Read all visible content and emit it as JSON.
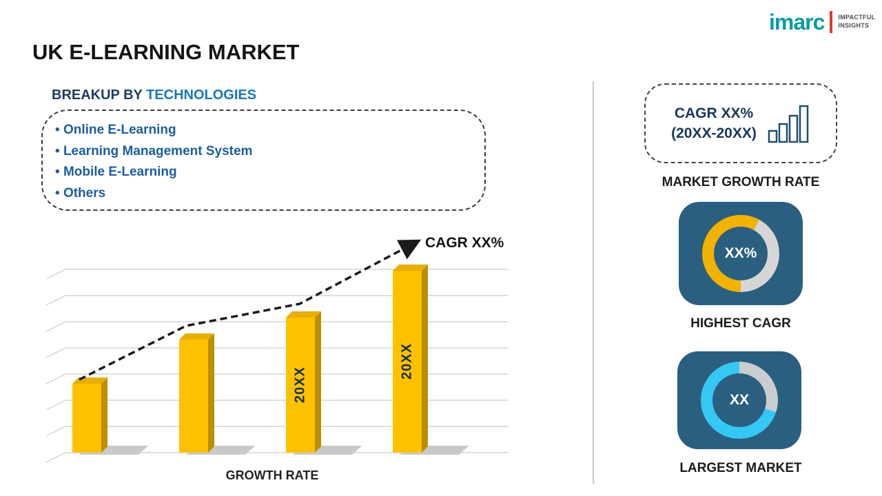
{
  "logo": {
    "name": "imarc",
    "tagline_line1": "IMPACTFUL",
    "tagline_line2": "INSIGHTS"
  },
  "title": "UK E-LEARNING MARKET",
  "breakup": {
    "heading_prefix": "BREAKUP BY ",
    "heading_highlight": "TECHNOLOGIES",
    "items": [
      "Online E-Learning",
      "Learning Management System",
      "Mobile E-Learning",
      "Others"
    ]
  },
  "chart_data": {
    "type": "bar",
    "title": "",
    "xlabel": "GROWTH RATE",
    "ylabel": "",
    "categories": [
      "",
      "",
      "20XX",
      "20XX"
    ],
    "bar_labels": [
      "",
      "",
      "20XX",
      "20XX"
    ],
    "values": [
      25,
      41,
      49,
      66
    ],
    "ylim": [
      0,
      70
    ],
    "grid": true,
    "bar_color": "#FFC000",
    "trend_label": "CAGR XX%",
    "trend_style": "dashed-arrow"
  },
  "right_panel": {
    "cagr_line1": "CAGR XX%",
    "cagr_line2": "(20XX-20XX)",
    "market_growth_label": "MARKET GROWTH RATE",
    "highest_cagr": {
      "value": "XX%",
      "label": "HIGHEST CAGR",
      "donut": {
        "start_deg": 180,
        "arc_percent": 58,
        "arc_color": "#f2b200",
        "track_color": "#d6d6d6"
      }
    },
    "largest_market": {
      "value": "XX",
      "label": "LARGEST MARKET",
      "donut": {
        "start_deg": 0,
        "arc_percent": 30,
        "arc_color": "#c9cdd0",
        "track_color": "#35c8f5"
      }
    }
  },
  "colors": {
    "bar_gold": "#FFC000",
    "card_navy": "#2b5f80",
    "cyan": "#35c8f5",
    "highlight_blue": "#1b76bb",
    "list_blue": "#1c5d9f",
    "logo_teal": "#0a9aa8",
    "logo_red": "#e03a2f"
  }
}
